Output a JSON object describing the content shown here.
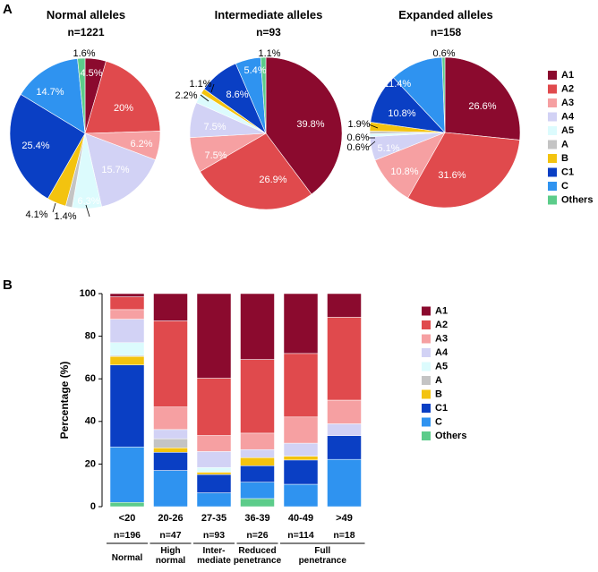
{
  "panels": {
    "a": "A",
    "b": "B"
  },
  "legend": [
    "A1",
    "A2",
    "A3",
    "A4",
    "A5",
    "A",
    "B",
    "C1",
    "C",
    "Others"
  ],
  "colors": {
    "A1": "#8b0a2e",
    "A2": "#e04a4d",
    "A3": "#f6a0a2",
    "A4": "#d2d2f5",
    "A5": "#dcfbfd",
    "A": "#c4c4c4",
    "B": "#f3c30f",
    "C1": "#0a3fc4",
    "C": "#2f93f0",
    "Others": "#5ccc8a"
  },
  "chart_data": [
    {
      "type": "pie",
      "title": "Normal alleles",
      "subtitle": "n=1221",
      "categories": [
        "A1",
        "A2",
        "A3",
        "A4",
        "A5",
        "A",
        "B",
        "C1",
        "C",
        "Others"
      ],
      "values": [
        4.5,
        20,
        6.2,
        15.7,
        6.3,
        1.4,
        4.1,
        25.4,
        14.7,
        1.6
      ],
      "labels": [
        "4.5%",
        "20%",
        "6.2%",
        "15.7%",
        "6.3%",
        "1.4%",
        "4.1%",
        "25.4%",
        "14.7%",
        "1.6%"
      ]
    },
    {
      "type": "pie",
      "title": "Intermediate alleles",
      "subtitle": "n=93",
      "categories": [
        "A1",
        "A2",
        "A3",
        "A4",
        "A5",
        "A",
        "B",
        "C1",
        "C",
        "Others"
      ],
      "values": [
        39.8,
        26.9,
        7.5,
        7.5,
        2.2,
        0,
        1.1,
        8.6,
        5.4,
        1.1
      ],
      "labels": [
        "39.8%",
        "26.9%",
        "7.5%",
        "7.5%",
        "2.2%",
        "",
        "1.1%",
        "8.6%",
        "5.4%",
        "1.1%"
      ]
    },
    {
      "type": "pie",
      "title": "Expanded alleles",
      "subtitle": "n=158",
      "categories": [
        "A1",
        "A2",
        "A3",
        "A4",
        "A5",
        "A",
        "B",
        "C1",
        "C",
        "Others"
      ],
      "values": [
        26.6,
        31.6,
        10.8,
        5.1,
        0.6,
        0.6,
        1.9,
        10.8,
        11.4,
        0.6
      ],
      "labels": [
        "26.6%",
        "31.6%",
        "10.8%",
        "5.1%",
        "0.6%",
        "0.6%",
        "1.9%",
        "10.8%",
        "11.4%",
        "0.6%"
      ]
    },
    {
      "type": "bar",
      "stacked": true,
      "ylabel": "Percentage (%)",
      "ylim": [
        0,
        100
      ],
      "yticks": [
        0,
        20,
        40,
        60,
        80,
        100
      ],
      "categories": [
        "<20",
        "20-26",
        "27-35",
        "36-39",
        "40-49",
        ">49"
      ],
      "counts": [
        "n=196",
        "n=47",
        "n=93",
        "n=26",
        "n=114",
        "n=18"
      ],
      "groups": [
        {
          "label": [
            "Normal"
          ],
          "from": 0,
          "to": 0
        },
        {
          "label": [
            "High",
            "normal"
          ],
          "from": 1,
          "to": 1
        },
        {
          "label": [
            "Inter-",
            "mediate"
          ],
          "from": 2,
          "to": 2
        },
        {
          "label": [
            "Reduced",
            "penetrance"
          ],
          "from": 3,
          "to": 3
        },
        {
          "label": [
            "Full",
            "penetrance"
          ],
          "from": 4,
          "to": 5
        }
      ],
      "series": [
        {
          "name": "Others",
          "values": [
            2,
            0,
            0,
            3.8,
            0,
            0
          ]
        },
        {
          "name": "C",
          "values": [
            26,
            17,
            6.5,
            7.7,
            10.5,
            22.2
          ]
        },
        {
          "name": "C1",
          "values": [
            38.5,
            8.5,
            8.6,
            7.7,
            11.4,
            11.1
          ]
        },
        {
          "name": "B",
          "values": [
            4,
            2.1,
            1.1,
            3.8,
            1.8,
            0
          ]
        },
        {
          "name": "A",
          "values": [
            0.5,
            4.3,
            0,
            0,
            0,
            0
          ]
        },
        {
          "name": "A5",
          "values": [
            6,
            0,
            2.2,
            0,
            0,
            0
          ]
        },
        {
          "name": "A4",
          "values": [
            11,
            4.3,
            7.5,
            3.8,
            6.1,
            5.6
          ]
        },
        {
          "name": "A3",
          "values": [
            4.5,
            10.6,
            7.5,
            7.7,
            12.3,
            11.1
          ]
        },
        {
          "name": "A2",
          "values": [
            6,
            40.4,
            26.9,
            34.6,
            29.8,
            38.9
          ]
        },
        {
          "name": "A1",
          "values": [
            1.5,
            12.8,
            39.7,
            30.9,
            28.1,
            11.1
          ]
        }
      ]
    }
  ]
}
